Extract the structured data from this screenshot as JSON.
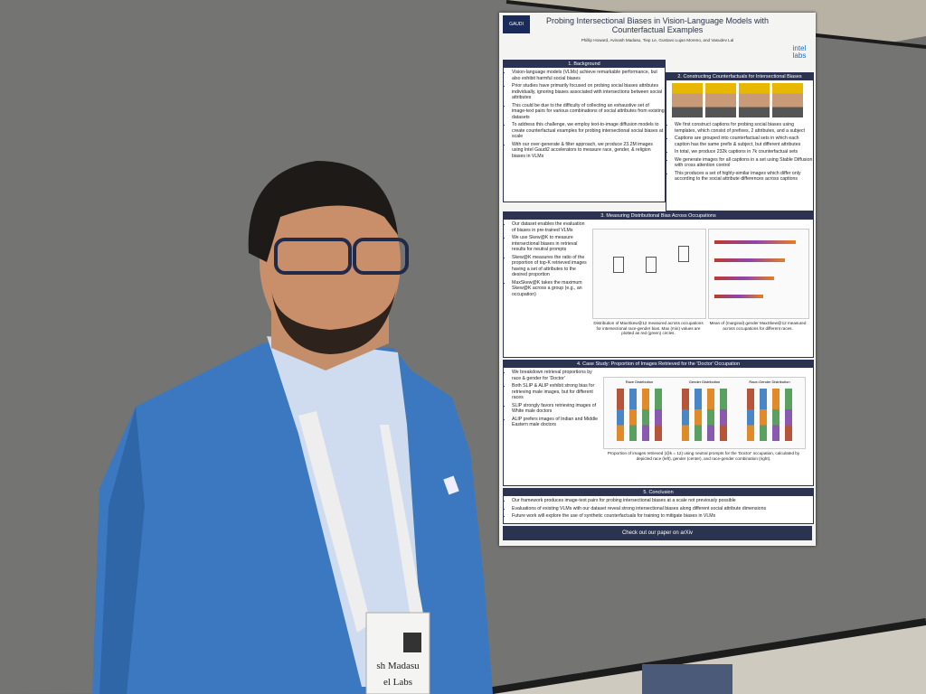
{
  "poster": {
    "logos": [
      "GAUDI",
      "intel labs"
    ],
    "title": "Probing Intersectional Biases in Vision-Language Models with Counterfactual Examples",
    "authors": "Phillip Howard, Avinash Madasu, Tiep Le, Gustavo Lujan Moreno, and Vasudev Lal",
    "sections": [
      {
        "heading": "1. Background",
        "bullets": [
          "Vision-language models (VLMs) achieve remarkable performance, but also exhibit harmful social biases",
          "Prior studies have primarily focused on probing social biases attributes individually, ignoring biases associated with intersections between social attributes",
          "This could be due to the difficulty of collecting an exhaustive set of image-text pairs for various combinations of social attributes from existing datasets",
          "To address this challenge, we employ text-to-image diffusion models to create counterfactual examples for probing intersectional social biases at scale",
          "With our over-generate & filter approach, we produce 23.2M images using Intel Gaudi2 accelerators to measure race, gender, & religion biases in VLMs"
        ]
      },
      {
        "heading": "2. Constructing Counterfactuals for Intersectional Biases",
        "bullets": [
          "We first construct captions for probing social biases using templates, which consist of prefixes, 2 attributes, and a subject",
          "Captions are grouped into counterfactual sets in which each caption has the same prefix & subject, but different attributes",
          "In total, we produce 232k captions in 7k counterfactual sets",
          "We generate images for all captions in a set using Stable Diffusion with cross attention control",
          "This produces a set of highly-similar images which differ only according to the social attribute differences across captions"
        ]
      },
      {
        "heading": "3. Measuring Distributional Bias Across Occupations",
        "bullets": [
          "Our dataset enables the evaluation of biases in pre-trained VLMs",
          "We use Skew@K to measure intersectional biases in retrieval results for neutral prompts",
          "Skew@K measures the ratio of the proportion of top-K retrieved images having a set of attributes to the desired proportion",
          "MaxSkew@K takes the maximum Skew@K across a group (e.g., an occupation)"
        ],
        "captions": [
          "Distribution of MaxSkew@12 measured across occupations for intersectional race-gender bias. Max (min) values are plotted as red (green) circles.",
          "Mean of (marginal) gender MaxSkew@12 measured across occupations for different races."
        ]
      },
      {
        "heading": "4. Case Study: Proportion of Images Retrieved for the 'Doctor' Occupation",
        "bullets": [
          "We breakdown retrieval proportions by race & gender for 'Doctor'",
          "Both SLIP & ALIP exhibit strong bias for retrieving male images, but for different races",
          "SLIP strongly favors retrieving images of White male doctors",
          "ALIP prefers images of Indian and Middle Eastern male doctors"
        ],
        "chart_titles": [
          "Race Distribution",
          "Gender Distribution",
          "Race-Gender Distribution"
        ],
        "captions": [
          "Proportion of images retrieved (@k = 12) using neutral prompts for the 'Doctor' occupation, calculated by depicted race (left), gender (center), and race-gender combination (right)."
        ]
      },
      {
        "heading": "5. Conclusion",
        "bullets": [
          "Our framework produces image-text pairs for probing intersectional biases at a scale not previously possible",
          "Evaluations of existing VLMs with our dataset reveal strong intersectional biases along different social attribute dimensions",
          "Future work will explore the use of synthetic counterfactuals for training to mitigate biases in VLMs"
        ]
      }
    ],
    "footer": "Check out our paper on arXiv"
  },
  "badge": {
    "name": "sh Madasu",
    "org": "el Labs"
  }
}
